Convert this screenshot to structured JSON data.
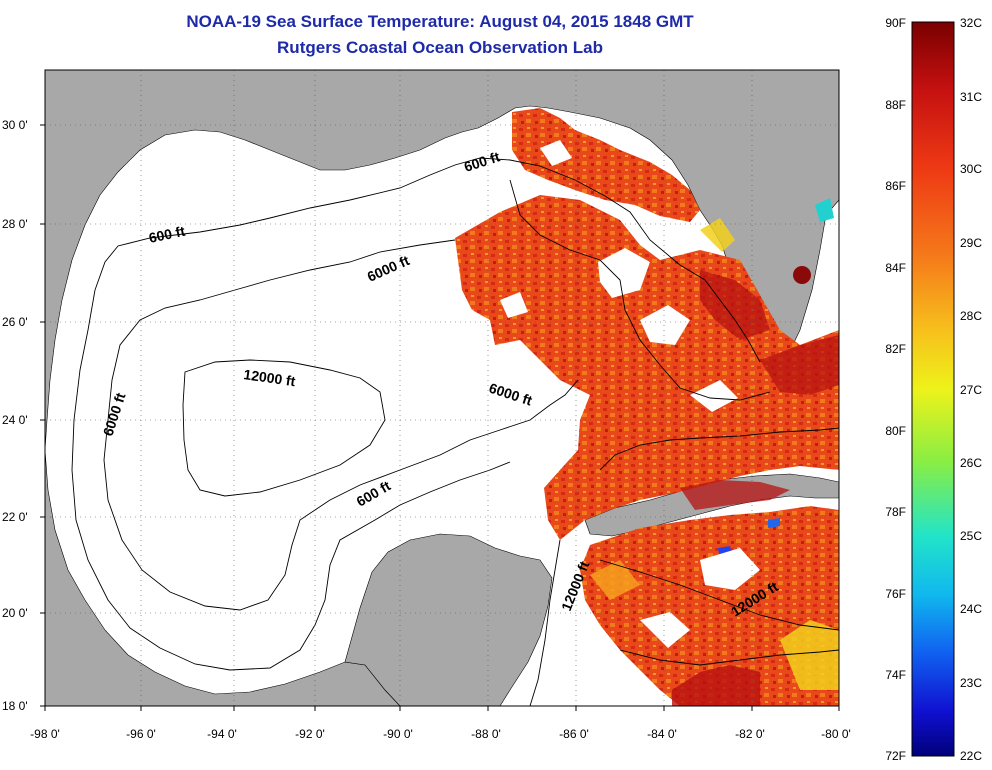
{
  "header": {
    "title": "NOAA-19 Sea Surface Temperature:  August 04, 2015 1848 GMT",
    "subtitle": "Rutgers Coastal Ocean Observation Lab"
  },
  "map": {
    "lat_labels": [
      "30 0'",
      "28 0'",
      "26 0'",
      "24 0'",
      "22 0'",
      "20 0'",
      "18 0'"
    ],
    "lon_labels": [
      "-98 0'",
      "-96 0'",
      "-94 0'",
      "-92 0'",
      "-90 0'",
      "-88 0'",
      "-86 0'",
      "-84 0'",
      "-82 0'",
      "-80 0'"
    ],
    "contour_labels": {
      "c600_nw": "600 ft",
      "c600_n": "600 ft",
      "c600_s": "600 ft",
      "c6000_w": "6000 ft",
      "c6000_c": "6000 ft",
      "c6000_e": "6000 ft",
      "c12000_c": "12000 ft",
      "c12000_se1": "12000 ft",
      "c12000_se2": "12000 ft"
    },
    "colors": {
      "land": "#a8a8a8",
      "ocean_nodata": "#ffffff",
      "sst_warm": "#e8421a",
      "sst_hot": "#b81212"
    }
  },
  "colorbar": {
    "fahrenheit": [
      "90F",
      "88F",
      "86F",
      "84F",
      "82F",
      "80F",
      "78F",
      "76F",
      "74F",
      "72F"
    ],
    "celsius": [
      "32C",
      "31C",
      "30C",
      "29C",
      "28C",
      "27C",
      "26C",
      "25C",
      "24C",
      "23C",
      "22C"
    ],
    "gradient": [
      "#7a0000",
      "#c41010",
      "#ee3a14",
      "#f57a1a",
      "#f7c01c",
      "#eef21a",
      "#88ee44",
      "#22e4c8",
      "#10b8ee",
      "#1060f0",
      "#1010d0",
      "#00007a"
    ]
  }
}
